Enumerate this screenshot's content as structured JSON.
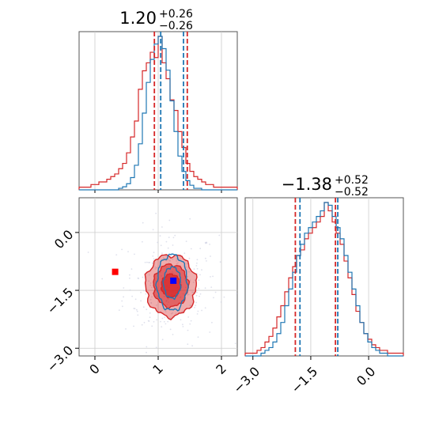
{
  "chart_data": {
    "type": "corner",
    "params": [
      {
        "title_main": "1.20",
        "title_plus": "+0.26",
        "title_minus": "−0.26",
        "median": 1.2,
        "quantiles": [
          0.94,
          1.46
        ],
        "quantiles_blue": [
          1.04,
          1.4
        ]
      },
      {
        "title_main": "−1.38",
        "title_plus": "+0.52",
        "title_minus": "−0.52",
        "median": -1.38,
        "quantiles": [
          -1.9,
          -0.86
        ],
        "quantiles_blue": [
          -1.78,
          -0.8
        ]
      }
    ],
    "ranges": {
      "p1": [
        -0.25,
        2.25
      ],
      "p2": [
        -3.2,
        0.9
      ]
    },
    "ticks": {
      "p1": {
        "values": [
          0,
          1,
          2
        ],
        "labels": [
          "0",
          "1",
          "2"
        ]
      },
      "p2": {
        "values": [
          -3.0,
          -1.5,
          0.0
        ],
        "labels": [
          "−3.0",
          "−1.5",
          "0.0"
        ]
      }
    },
    "markers": [
      {
        "name": "red marker",
        "x": 0.32,
        "y": -1.02,
        "color": "#ff0000"
      },
      {
        "name": "blue marker",
        "x": 1.24,
        "y": -1.25,
        "color": "#0000ff"
      }
    ],
    "series": [
      {
        "color": "#d62728",
        "center": [
          1.2,
          -1.38
        ],
        "sigma": [
          0.25,
          0.5
        ],
        "hist1": [
          1,
          1,
          1,
          2,
          2,
          3,
          3,
          4,
          5,
          6,
          8,
          10,
          14,
          20,
          26,
          38,
          45,
          48,
          52,
          50,
          58,
          48,
          42,
          34,
          30,
          22,
          16,
          10,
          7,
          5,
          4,
          3,
          2,
          2,
          1,
          1,
          1,
          1,
          1,
          1
        ],
        "hist2": [
          1,
          1,
          1,
          2,
          3,
          5,
          7,
          10,
          14,
          18,
          23,
          28,
          32,
          36,
          38,
          42,
          44,
          46,
          48,
          50,
          55,
          52,
          48,
          44,
          40,
          34,
          28,
          22,
          16,
          12,
          8,
          6,
          4,
          3,
          2,
          2,
          1,
          1,
          1,
          1
        ]
      },
      {
        "color": "#1f77b4",
        "center": [
          1.22,
          -1.3
        ],
        "sigma": [
          0.15,
          0.45
        ],
        "hist1": [
          0,
          0,
          0,
          0,
          0,
          0,
          0,
          0,
          0,
          0,
          1,
          2,
          4,
          8,
          16,
          30,
          50,
          70,
          85,
          95,
          100,
          92,
          78,
          58,
          38,
          22,
          12,
          6,
          3,
          1,
          1,
          0,
          0,
          0,
          0,
          0,
          0,
          0,
          0,
          0
        ],
        "hist2": [
          0,
          0,
          0,
          0,
          1,
          2,
          3,
          5,
          8,
          12,
          18,
          24,
          30,
          36,
          40,
          44,
          46,
          48,
          50,
          52,
          55,
          54,
          50,
          46,
          42,
          36,
          30,
          24,
          18,
          12,
          8,
          5,
          3,
          2,
          1,
          1,
          0,
          0,
          0,
          0
        ]
      }
    ],
    "contour_levels_red": [
      0.6,
      1.1,
      1.6
    ],
    "contour_levels_blue": [
      0.9,
      1.6
    ],
    "grid": true
  }
}
